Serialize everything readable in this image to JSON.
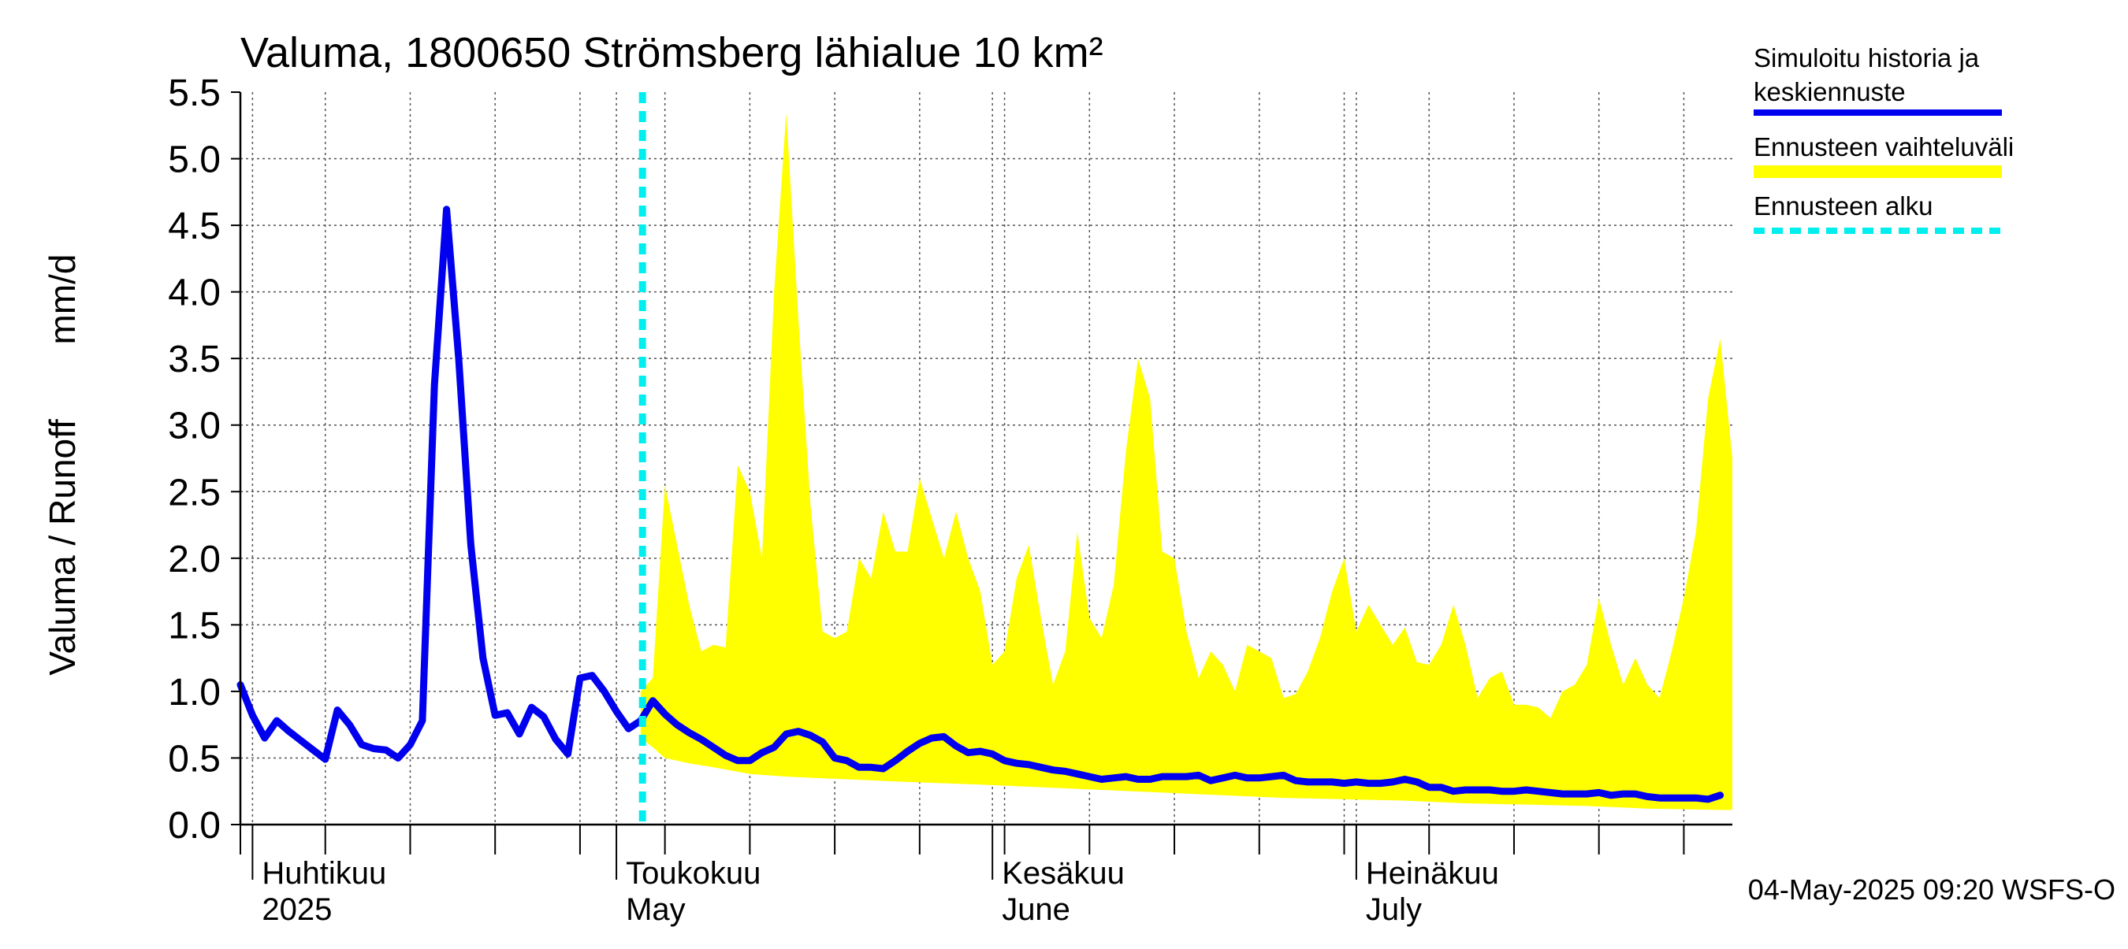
{
  "chart_data": {
    "type": "line",
    "title": "Valuma, 1800650 Strömsberg lähialue 10 km²",
    "ylabel_left": "Valuma / Runoff",
    "ylabel_right": "mm/d",
    "ylim": [
      0,
      5.5
    ],
    "y_ticks": [
      "0.0",
      "0.5",
      "1.0",
      "1.5",
      "2.0",
      "2.5",
      "3.0",
      "3.5",
      "4.0",
      "4.5",
      "5.0",
      "5.5"
    ],
    "x_range": [
      "2025-03-31",
      "2025-07-31"
    ],
    "month_labels": [
      {
        "fi": "Huhtikuu",
        "en": "2025",
        "date": "2025-04-01"
      },
      {
        "fi": "Toukokuu",
        "en": "May",
        "date": "2025-05-01"
      },
      {
        "fi": "Kesäkuu",
        "en": "June",
        "date": "2025-06-01"
      },
      {
        "fi": "Heinäkuu",
        "en": "July",
        "date": "2025-07-01"
      }
    ],
    "forecast_start": "2025-05-04",
    "footer": "04-May-2025 09:20 WSFS-O",
    "grid": true,
    "legend_position": "right",
    "legend": [
      {
        "label_line1": "Simuloitu historia ja",
        "label_line2": "keskiennuste",
        "color": "#0000ee",
        "style": "solid"
      },
      {
        "label_line1": "Ennusteen vaihteluväli",
        "label_line2": "",
        "color": "#ffff00",
        "style": "band"
      },
      {
        "label_line1": "Ennusteen alku",
        "label_line2": "",
        "color": "#00eeee",
        "style": "dashed"
      }
    ],
    "series": [
      {
        "name": "Simuloitu historia ja keskiennuste",
        "color": "#0000ee",
        "points": [
          [
            "2025-03-31",
            1.05
          ],
          [
            "2025-04-01",
            0.82
          ],
          [
            "2025-04-02",
            0.65
          ],
          [
            "2025-04-03",
            0.78
          ],
          [
            "2025-04-04",
            0.7
          ],
          [
            "2025-04-05",
            0.63
          ],
          [
            "2025-04-06",
            0.56
          ],
          [
            "2025-04-07",
            0.49
          ],
          [
            "2025-04-08",
            0.86
          ],
          [
            "2025-04-09",
            0.75
          ],
          [
            "2025-04-10",
            0.6
          ],
          [
            "2025-04-11",
            0.57
          ],
          [
            "2025-04-12",
            0.56
          ],
          [
            "2025-04-13",
            0.5
          ],
          [
            "2025-04-14",
            0.6
          ],
          [
            "2025-04-15",
            0.78
          ],
          [
            "2025-04-16",
            3.3
          ],
          [
            "2025-04-17",
            4.62
          ],
          [
            "2025-04-18",
            3.5
          ],
          [
            "2025-04-19",
            2.1
          ],
          [
            "2025-04-20",
            1.25
          ],
          [
            "2025-04-21",
            0.82
          ],
          [
            "2025-04-22",
            0.84
          ],
          [
            "2025-04-23",
            0.68
          ],
          [
            "2025-04-24",
            0.88
          ],
          [
            "2025-04-25",
            0.81
          ],
          [
            "2025-04-26",
            0.64
          ],
          [
            "2025-04-27",
            0.53
          ],
          [
            "2025-04-28",
            1.1
          ],
          [
            "2025-04-29",
            1.12
          ],
          [
            "2025-04-30",
            1.0
          ],
          [
            "2025-05-01",
            0.85
          ],
          [
            "2025-05-02",
            0.72
          ],
          [
            "2025-05-03",
            0.78
          ],
          [
            "2025-05-04",
            0.93
          ],
          [
            "2025-05-05",
            0.83
          ],
          [
            "2025-05-06",
            0.75
          ],
          [
            "2025-05-07",
            0.69
          ],
          [
            "2025-05-08",
            0.64
          ],
          [
            "2025-05-09",
            0.58
          ],
          [
            "2025-05-10",
            0.52
          ],
          [
            "2025-05-11",
            0.48
          ],
          [
            "2025-05-12",
            0.48
          ],
          [
            "2025-05-13",
            0.54
          ],
          [
            "2025-05-14",
            0.58
          ],
          [
            "2025-05-15",
            0.68
          ],
          [
            "2025-05-16",
            0.7
          ],
          [
            "2025-05-17",
            0.67
          ],
          [
            "2025-05-18",
            0.62
          ],
          [
            "2025-05-19",
            0.5
          ],
          [
            "2025-05-20",
            0.48
          ],
          [
            "2025-05-21",
            0.43
          ],
          [
            "2025-05-22",
            0.43
          ],
          [
            "2025-05-23",
            0.42
          ],
          [
            "2025-05-24",
            0.48
          ],
          [
            "2025-05-25",
            0.55
          ],
          [
            "2025-05-26",
            0.61
          ],
          [
            "2025-05-27",
            0.65
          ],
          [
            "2025-05-28",
            0.66
          ],
          [
            "2025-05-29",
            0.59
          ],
          [
            "2025-05-30",
            0.54
          ],
          [
            "2025-05-31",
            0.55
          ],
          [
            "2025-06-01",
            0.53
          ],
          [
            "2025-06-02",
            0.48
          ],
          [
            "2025-06-03",
            0.46
          ],
          [
            "2025-06-04",
            0.45
          ],
          [
            "2025-06-05",
            0.43
          ],
          [
            "2025-06-06",
            0.41
          ],
          [
            "2025-06-07",
            0.4
          ],
          [
            "2025-06-08",
            0.38
          ],
          [
            "2025-06-09",
            0.36
          ],
          [
            "2025-06-10",
            0.34
          ],
          [
            "2025-06-11",
            0.35
          ],
          [
            "2025-06-12",
            0.36
          ],
          [
            "2025-06-13",
            0.34
          ],
          [
            "2025-06-14",
            0.34
          ],
          [
            "2025-06-15",
            0.36
          ],
          [
            "2025-06-16",
            0.36
          ],
          [
            "2025-06-17",
            0.36
          ],
          [
            "2025-06-18",
            0.37
          ],
          [
            "2025-06-19",
            0.33
          ],
          [
            "2025-06-20",
            0.35
          ],
          [
            "2025-06-21",
            0.37
          ],
          [
            "2025-06-22",
            0.35
          ],
          [
            "2025-06-23",
            0.35
          ],
          [
            "2025-06-24",
            0.36
          ],
          [
            "2025-06-25",
            0.37
          ],
          [
            "2025-06-26",
            0.33
          ],
          [
            "2025-06-27",
            0.32
          ],
          [
            "2025-06-28",
            0.32
          ],
          [
            "2025-06-29",
            0.32
          ],
          [
            "2025-06-30",
            0.31
          ],
          [
            "2025-07-01",
            0.32
          ],
          [
            "2025-07-02",
            0.31
          ],
          [
            "2025-07-03",
            0.31
          ],
          [
            "2025-07-04",
            0.32
          ],
          [
            "2025-07-05",
            0.34
          ],
          [
            "2025-07-06",
            0.32
          ],
          [
            "2025-07-07",
            0.28
          ],
          [
            "2025-07-08",
            0.28
          ],
          [
            "2025-07-09",
            0.25
          ],
          [
            "2025-07-10",
            0.26
          ],
          [
            "2025-07-11",
            0.26
          ],
          [
            "2025-07-12",
            0.26
          ],
          [
            "2025-07-13",
            0.25
          ],
          [
            "2025-07-14",
            0.25
          ],
          [
            "2025-07-15",
            0.26
          ],
          [
            "2025-07-16",
            0.25
          ],
          [
            "2025-07-17",
            0.24
          ],
          [
            "2025-07-18",
            0.23
          ],
          [
            "2025-07-19",
            0.23
          ],
          [
            "2025-07-20",
            0.23
          ],
          [
            "2025-07-21",
            0.24
          ],
          [
            "2025-07-22",
            0.22
          ],
          [
            "2025-07-23",
            0.23
          ],
          [
            "2025-07-24",
            0.23
          ],
          [
            "2025-07-25",
            0.21
          ],
          [
            "2025-07-26",
            0.2
          ],
          [
            "2025-07-27",
            0.2
          ],
          [
            "2025-07-28",
            0.2
          ],
          [
            "2025-07-29",
            0.2
          ],
          [
            "2025-07-30",
            0.19
          ],
          [
            "2025-07-31",
            0.22
          ]
        ]
      }
    ],
    "band": {
      "name": "Ennusteen vaihteluväli",
      "color": "#ffff00",
      "upper": [
        [
          "2025-05-03",
          1.0
        ],
        [
          "2025-05-04",
          1.1
        ],
        [
          "2025-05-05",
          2.55
        ],
        [
          "2025-05-06",
          2.1
        ],
        [
          "2025-05-07",
          1.65
        ],
        [
          "2025-05-08",
          1.3
        ],
        [
          "2025-05-09",
          1.35
        ],
        [
          "2025-05-10",
          1.33
        ],
        [
          "2025-05-11",
          2.7
        ],
        [
          "2025-05-12",
          2.5
        ],
        [
          "2025-05-13",
          2.0
        ],
        [
          "2025-05-14",
          4.0
        ],
        [
          "2025-05-15",
          5.35
        ],
        [
          "2025-05-16",
          3.8
        ],
        [
          "2025-05-17",
          2.4
        ],
        [
          "2025-05-18",
          1.45
        ],
        [
          "2025-05-19",
          1.4
        ],
        [
          "2025-05-20",
          1.45
        ],
        [
          "2025-05-21",
          2.0
        ],
        [
          "2025-05-22",
          1.85
        ],
        [
          "2025-05-23",
          2.35
        ],
        [
          "2025-05-24",
          2.05
        ],
        [
          "2025-05-25",
          2.05
        ],
        [
          "2025-05-26",
          2.6
        ],
        [
          "2025-05-27",
          2.3
        ],
        [
          "2025-05-28",
          2.0
        ],
        [
          "2025-05-29",
          2.35
        ],
        [
          "2025-05-30",
          2.0
        ],
        [
          "2025-05-31",
          1.75
        ],
        [
          "2025-06-01",
          1.2
        ],
        [
          "2025-06-02",
          1.3
        ],
        [
          "2025-06-03",
          1.85
        ],
        [
          "2025-06-04",
          2.1
        ],
        [
          "2025-06-05",
          1.55
        ],
        [
          "2025-06-06",
          1.05
        ],
        [
          "2025-06-07",
          1.3
        ],
        [
          "2025-06-08",
          2.2
        ],
        [
          "2025-06-09",
          1.55
        ],
        [
          "2025-06-10",
          1.4
        ],
        [
          "2025-06-11",
          1.8
        ],
        [
          "2025-06-12",
          2.8
        ],
        [
          "2025-06-13",
          3.5
        ],
        [
          "2025-06-14",
          3.2
        ],
        [
          "2025-06-15",
          2.05
        ],
        [
          "2025-06-16",
          2.0
        ],
        [
          "2025-06-17",
          1.45
        ],
        [
          "2025-06-18",
          1.1
        ],
        [
          "2025-06-19",
          1.3
        ],
        [
          "2025-06-20",
          1.2
        ],
        [
          "2025-06-21",
          1.0
        ],
        [
          "2025-06-22",
          1.35
        ],
        [
          "2025-06-23",
          1.3
        ],
        [
          "2025-06-24",
          1.25
        ],
        [
          "2025-06-25",
          0.95
        ],
        [
          "2025-06-26",
          0.98
        ],
        [
          "2025-06-27",
          1.15
        ],
        [
          "2025-06-28",
          1.4
        ],
        [
          "2025-06-29",
          1.75
        ],
        [
          "2025-06-30",
          2.0
        ],
        [
          "2025-07-01",
          1.45
        ],
        [
          "2025-07-02",
          1.65
        ],
        [
          "2025-07-03",
          1.5
        ],
        [
          "2025-07-04",
          1.35
        ],
        [
          "2025-07-05",
          1.48
        ],
        [
          "2025-07-06",
          1.22
        ],
        [
          "2025-07-07",
          1.2
        ],
        [
          "2025-07-08",
          1.35
        ],
        [
          "2025-07-09",
          1.65
        ],
        [
          "2025-07-10",
          1.35
        ],
        [
          "2025-07-11",
          0.95
        ],
        [
          "2025-07-12",
          1.1
        ],
        [
          "2025-07-13",
          1.15
        ],
        [
          "2025-07-14",
          0.9
        ],
        [
          "2025-07-15",
          0.9
        ],
        [
          "2025-07-16",
          0.88
        ],
        [
          "2025-07-17",
          0.8
        ],
        [
          "2025-07-18",
          1.0
        ],
        [
          "2025-07-19",
          1.05
        ],
        [
          "2025-07-20",
          1.2
        ],
        [
          "2025-07-21",
          1.7
        ],
        [
          "2025-07-22",
          1.35
        ],
        [
          "2025-07-23",
          1.05
        ],
        [
          "2025-07-24",
          1.25
        ],
        [
          "2025-07-25",
          1.05
        ],
        [
          "2025-07-26",
          0.95
        ],
        [
          "2025-07-27",
          1.3
        ],
        [
          "2025-07-28",
          1.7
        ],
        [
          "2025-07-29",
          2.2
        ],
        [
          "2025-07-30",
          3.2
        ],
        [
          "2025-07-31",
          3.65
        ],
        [
          "2025-08-01",
          2.75
        ]
      ],
      "lower": [
        [
          "2025-05-03",
          0.65
        ],
        [
          "2025-05-04",
          0.58
        ],
        [
          "2025-05-05",
          0.5
        ],
        [
          "2025-05-07",
          0.46
        ],
        [
          "2025-05-09",
          0.43
        ],
        [
          "2025-05-12",
          0.38
        ],
        [
          "2025-05-15",
          0.36
        ],
        [
          "2025-05-20",
          0.34
        ],
        [
          "2025-05-25",
          0.32
        ],
        [
          "2025-05-31",
          0.3
        ],
        [
          "2025-06-05",
          0.28
        ],
        [
          "2025-06-10",
          0.26
        ],
        [
          "2025-06-15",
          0.24
        ],
        [
          "2025-06-20",
          0.22
        ],
        [
          "2025-06-25",
          0.2
        ],
        [
          "2025-06-30",
          0.19
        ],
        [
          "2025-07-05",
          0.18
        ],
        [
          "2025-07-10",
          0.16
        ],
        [
          "2025-07-15",
          0.15
        ],
        [
          "2025-07-20",
          0.14
        ],
        [
          "2025-07-25",
          0.12
        ],
        [
          "2025-07-31",
          0.11
        ],
        [
          "2025-08-01",
          0.11
        ]
      ]
    }
  }
}
